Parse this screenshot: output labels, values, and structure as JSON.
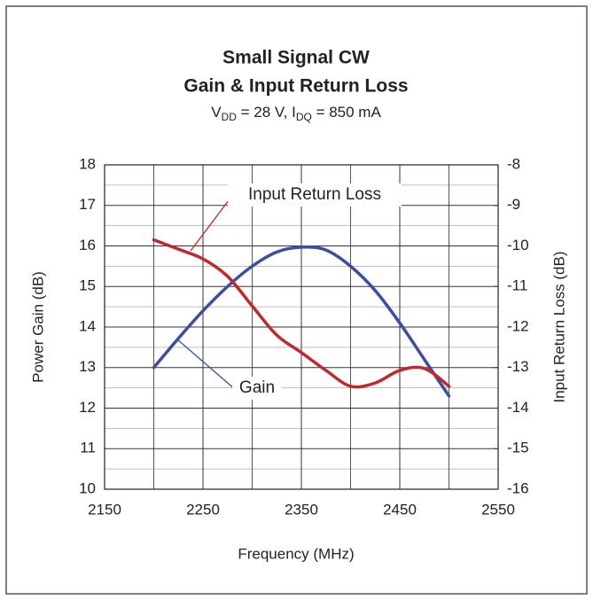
{
  "chart_data": {
    "type": "line",
    "title": "Small Signal CW",
    "title2": "Gain & Input Return Loss",
    "subtitle_parts": [
      "V",
      "DD",
      " = 28 V, I",
      "DQ",
      " = 850 mA"
    ],
    "x_label": "Frequency (MHz)",
    "y_label": "Power Gain (dB)",
    "y2_label": "Input Return Loss (dB)",
    "x": [
      2200,
      2225,
      2250,
      2275,
      2300,
      2325,
      2350,
      2375,
      2400,
      2425,
      2450,
      2475,
      2500
    ],
    "series": [
      {
        "name": "Gain",
        "color": "#3b4ea3",
        "values": [
          13.0,
          13.72,
          14.4,
          15.0,
          15.5,
          15.85,
          15.97,
          15.9,
          15.5,
          14.9,
          14.1,
          13.2,
          12.3
        ]
      },
      {
        "name": "Input Return Loss",
        "color": "#c1272d",
        "axis": "y2",
        "values": [
          -9.85,
          -10.08,
          -10.32,
          -10.75,
          -11.48,
          -12.2,
          -12.63,
          -13.07,
          -13.46,
          -13.38,
          -13.07,
          -13.02,
          -13.46
        ]
      }
    ],
    "xlim": [
      2150,
      2550
    ],
    "xticks": [
      2150,
      2250,
      2350,
      2450,
      2550
    ],
    "xminor_ticks": [
      2200,
      2300,
      2400,
      2500
    ],
    "ylim": [
      10,
      18
    ],
    "yticks": [
      10,
      11,
      12,
      13,
      14,
      15,
      16,
      17,
      18
    ],
    "yminor_ticks": [
      10.5,
      11.5,
      12.5,
      13.5,
      14.5,
      15.5,
      16.5,
      17.5
    ],
    "y2lim": [
      -16,
      -8
    ],
    "y2ticks": [
      -16,
      -15,
      -14,
      -13,
      -12,
      -11,
      -10,
      -9,
      -8
    ],
    "grid": true
  }
}
